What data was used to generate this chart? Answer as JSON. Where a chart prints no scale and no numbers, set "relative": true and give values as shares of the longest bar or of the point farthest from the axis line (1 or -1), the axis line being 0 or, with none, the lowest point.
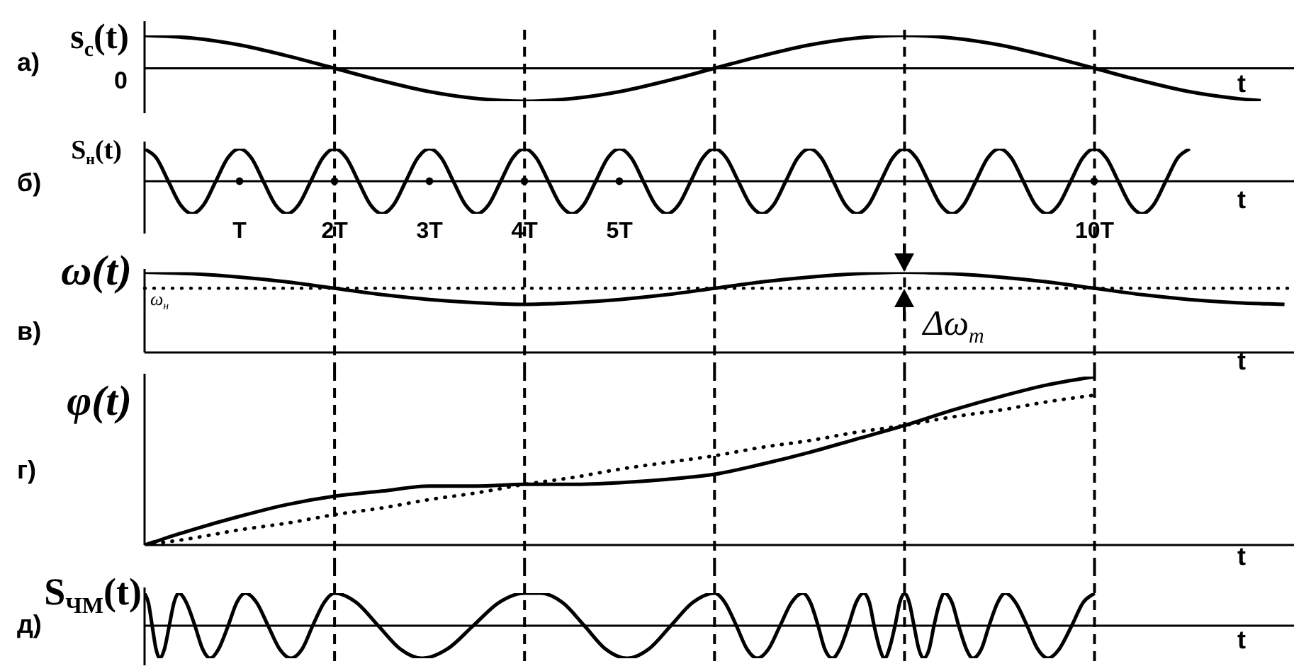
{
  "chart_data": [
    {
      "type": "line",
      "title": "а)",
      "ylabel": "s$_{с}$(t)",
      "xlabel": "t",
      "relative": true,
      "xlim": [
        0,
        12.1
      ],
      "tick_labels": false,
      "color": "#000000",
      "x": [
        0,
        0.5,
        1,
        1.5,
        2,
        2.5,
        3,
        3.5,
        4,
        4.5,
        5,
        5.5,
        6,
        6.5,
        7,
        7.5,
        8,
        8.5,
        9,
        9.5,
        10,
        10.5,
        11,
        11.5,
        11.75
      ],
      "values": [
        1,
        0.92,
        0.71,
        0.38,
        0,
        -0.38,
        -0.71,
        -0.92,
        -1,
        -0.92,
        -0.71,
        -0.38,
        0,
        0.38,
        0.71,
        0.92,
        1,
        0.92,
        0.71,
        0.38,
        0,
        -0.38,
        -0.71,
        -0.92,
        -0.98
      ],
      "ref_lines": [
        {
          "axis": "x",
          "value": 2,
          "line_style": "dashed"
        },
        {
          "axis": "x",
          "value": 4,
          "line_style": "dashed"
        },
        {
          "axis": "x",
          "value": 6,
          "line_style": "dashed"
        },
        {
          "axis": "x",
          "value": 8,
          "line_style": "dashed"
        },
        {
          "axis": "x",
          "value": 10,
          "line_style": "dashed"
        }
      ],
      "annotations": [
        "0"
      ]
    },
    {
      "type": "line",
      "title": "б)",
      "ylabel": "S$_{н}$(t)",
      "xlabel": "t",
      "relative": true,
      "xlim": [
        0,
        12.1
      ],
      "xticks": [
        {
          "value": 1,
          "label": "T"
        },
        {
          "value": 2,
          "label": "2T"
        },
        {
          "value": 3,
          "label": "3T"
        },
        {
          "value": 4,
          "label": "4T"
        },
        {
          "value": 5,
          "label": "5T"
        },
        {
          "value": 10,
          "label": "10T"
        }
      ],
      "tick_labels": "x",
      "color": "#000000",
      "x": [
        0,
        0.125,
        0.25,
        0.375,
        0.5,
        0.625,
        0.75,
        0.875,
        1,
        1.125,
        1.25,
        1.375,
        1.5,
        1.625,
        1.75,
        1.875,
        2,
        2.125,
        2.25,
        2.375,
        2.5,
        2.625,
        2.75,
        2.875,
        3,
        3.125,
        3.25,
        3.375,
        3.5,
        3.625,
        3.75,
        3.875,
        4,
        4.125,
        4.25,
        4.375,
        4.5,
        4.625,
        4.75,
        4.875,
        5,
        5.125,
        5.25,
        5.375,
        5.5,
        5.625,
        5.75,
        5.875,
        6,
        6.125,
        6.25,
        6.375,
        6.5,
        6.625,
        6.75,
        6.875,
        7,
        7.125,
        7.25,
        7.375,
        7.5,
        7.625,
        7.75,
        7.875,
        8,
        8.125,
        8.25,
        8.375,
        8.5,
        8.625,
        8.75,
        8.875,
        9,
        9.125,
        9.25,
        9.375,
        9.5,
        9.625,
        9.75,
        9.875,
        10,
        10.125,
        10.25,
        10.375,
        10.5,
        10.625,
        10.75,
        10.875,
        11
      ],
      "values": [
        1,
        0.71,
        0,
        -0.71,
        -1,
        -0.71,
        0,
        0.71,
        1,
        0.71,
        0,
        -0.71,
        -1,
        -0.71,
        0,
        0.71,
        1,
        0.71,
        0,
        -0.71,
        -1,
        -0.71,
        0,
        0.71,
        1,
        0.71,
        0,
        -0.71,
        -1,
        -0.71,
        0,
        0.71,
        1,
        0.71,
        0,
        -0.71,
        -1,
        -0.71,
        0,
        0.71,
        1,
        0.71,
        0,
        -0.71,
        -1,
        -0.71,
        0,
        0.71,
        1,
        0.71,
        0,
        -0.71,
        -1,
        -0.71,
        0,
        0.71,
        1,
        0.71,
        0,
        -0.71,
        -1,
        -0.71,
        0,
        0.71,
        1,
        0.71,
        0,
        -0.71,
        -1,
        -0.71,
        0,
        0.71,
        1,
        0.71,
        0,
        -0.71,
        -1,
        -0.71,
        0,
        0.71,
        1,
        0.71,
        0,
        -0.71,
        -1,
        -0.71,
        0,
        0.71,
        1
      ],
      "ref_lines": [
        {
          "axis": "x",
          "value": 2,
          "line_style": "dashed"
        },
        {
          "axis": "x",
          "value": 4,
          "line_style": "dashed"
        },
        {
          "axis": "x",
          "value": 6,
          "line_style": "dashed"
        },
        {
          "axis": "x",
          "value": 8,
          "line_style": "dashed"
        },
        {
          "axis": "x",
          "value": 10,
          "line_style": "dashed"
        }
      ]
    },
    {
      "type": "line",
      "title": "в)",
      "ylabel": "ω(t)",
      "xlabel": "t",
      "relative": true,
      "xlim": [
        0,
        12.1
      ],
      "tick_labels": false,
      "color": "#000000",
      "x": [
        0,
        0.5,
        1,
        1.5,
        2,
        2.5,
        3,
        3.5,
        4,
        4.5,
        5,
        5.5,
        6,
        6.5,
        7,
        7.5,
        8,
        8.5,
        9,
        9.5,
        10,
        10.5,
        11,
        11.5,
        12
      ],
      "values": [
        1,
        0.98,
        0.94,
        0.88,
        0.8,
        0.72,
        0.66,
        0.62,
        0.6,
        0.62,
        0.66,
        0.72,
        0.8,
        0.88,
        0.94,
        0.98,
        1,
        0.98,
        0.94,
        0.88,
        0.8,
        0.72,
        0.66,
        0.62,
        0.6
      ],
      "ref_lines": [
        {
          "axis": "x",
          "value": 2,
          "line_style": "dashed"
        },
        {
          "axis": "x",
          "value": 4,
          "line_style": "dashed"
        },
        {
          "axis": "x",
          "value": 6,
          "line_style": "dashed"
        },
        {
          "axis": "x",
          "value": 8,
          "line_style": "dashed"
        },
        {
          "axis": "x",
          "value": 10,
          "line_style": "dashed"
        },
        {
          "axis": "y",
          "value": 0.8,
          "label": "ω$_{н}$",
          "line_style": "dotted"
        }
      ],
      "annotations": [
        {
          "text": "Δω$_{m}$",
          "x": 8,
          "y": 0.8
        }
      ]
    },
    {
      "type": "line",
      "title": "г)",
      "ylabel": "φ(t)",
      "xlabel": "t",
      "relative": true,
      "xlim": [
        0,
        12.1
      ],
      "tick_labels": false,
      "x": [
        0,
        0.5,
        1,
        1.5,
        2,
        2.5,
        3,
        3.5,
        4,
        4.5,
        5,
        5.5,
        6,
        6.5,
        7,
        7.5,
        8,
        8.5,
        9,
        9.5,
        10
      ],
      "series": [
        {
          "color": "#000000",
          "values": [
            0,
            0.09,
            0.17,
            0.24,
            0.29,
            0.32,
            0.35,
            0.35,
            0.36,
            0.36,
            0.37,
            0.39,
            0.42,
            0.48,
            0.55,
            0.63,
            0.71,
            0.8,
            0.88,
            0.95,
            1
          ]
        },
        {
          "type": "line",
          "line_style": "dotted",
          "color": "#000000",
          "values": [
            0,
            0.04,
            0.09,
            0.13,
            0.18,
            0.22,
            0.27,
            0.31,
            0.36,
            0.4,
            0.45,
            0.49,
            0.53,
            0.58,
            0.62,
            0.67,
            0.71,
            0.76,
            0.8,
            0.85,
            0.89
          ]
        }
      ],
      "ref_lines": [
        {
          "axis": "x",
          "value": 2,
          "line_style": "dashed"
        },
        {
          "axis": "x",
          "value": 4,
          "line_style": "dashed"
        },
        {
          "axis": "x",
          "value": 6,
          "line_style": "dashed"
        },
        {
          "axis": "x",
          "value": 8,
          "line_style": "dashed"
        },
        {
          "axis": "x",
          "value": 10,
          "line_style": "dashed"
        }
      ]
    },
    {
      "type": "line",
      "title": "д)",
      "ylabel": "S$_{ЧМ}$(t)",
      "xlabel": "t",
      "relative": true,
      "xlim": [
        0,
        12.1
      ],
      "tick_labels": false,
      "color": "#000000",
      "x": [
        0,
        0.04,
        0.08,
        0.12,
        0.16,
        0.21,
        0.26,
        0.31,
        0.36,
        0.44,
        0.53,
        0.61,
        0.69,
        0.78,
        0.88,
        0.97,
        1.06,
        1.18,
        1.3,
        1.42,
        1.54,
        1.66,
        1.77,
        1.89,
        2,
        2.23,
        2.46,
        2.69,
        2.92,
        3.19,
        3.46,
        3.73,
        4,
        4.17,
        4.4,
        4.63,
        4.85,
        5.08,
        5.31,
        5.54,
        5.77,
        6,
        6.11,
        6.23,
        6.34,
        6.45,
        6.57,
        6.69,
        6.81,
        6.93,
        7.01,
        7.09,
        7.16,
        7.24,
        7.32,
        7.41,
        7.49,
        7.57,
        7.63,
        7.68,
        7.74,
        7.79,
        7.84,
        7.9,
        7.95,
        8,
        8.05,
        8.1,
        8.15,
        8.2,
        8.26,
        8.31,
        8.37,
        8.42,
        8.5,
        8.57,
        8.65,
        8.72,
        8.81,
        8.89,
        8.98,
        9.06,
        9.17,
        9.29,
        9.4,
        9.51,
        9.63,
        9.76,
        9.88,
        10
      ],
      "values": [
        1,
        0.71,
        0,
        -0.71,
        -1,
        -0.71,
        0,
        0.71,
        1,
        0.71,
        0,
        -0.71,
        -1,
        -0.71,
        0,
        0.71,
        1,
        0.71,
        0,
        -0.71,
        -1,
        -0.71,
        0,
        0.71,
        1,
        0.71,
        0,
        -0.71,
        -1,
        -0.71,
        0,
        0.71,
        1,
        1,
        0.71,
        0,
        -0.71,
        -1,
        -0.71,
        0,
        0.71,
        1,
        0.71,
        0,
        -0.71,
        -1,
        -0.71,
        0,
        0.71,
        1,
        0.71,
        0,
        -0.71,
        -1,
        -0.71,
        0,
        0.71,
        1,
        0.71,
        0,
        -0.71,
        -1,
        -0.71,
        0,
        0.71,
        1,
        0.71,
        0,
        -0.71,
        -1,
        -0.71,
        0,
        0.71,
        1,
        0.71,
        0,
        -0.71,
        -1,
        -0.71,
        0,
        0.71,
        1,
        0.71,
        0,
        -0.71,
        -1,
        -0.71,
        0,
        0.71,
        1
      ],
      "ref_lines": [
        {
          "axis": "x",
          "value": 2,
          "line_style": "dashed"
        },
        {
          "axis": "x",
          "value": 4,
          "line_style": "dashed"
        },
        {
          "axis": "x",
          "value": 6,
          "line_style": "dashed"
        },
        {
          "axis": "x",
          "value": 8,
          "line_style": "dashed"
        },
        {
          "axis": "x",
          "value": 10,
          "line_style": "dashed"
        }
      ]
    }
  ]
}
